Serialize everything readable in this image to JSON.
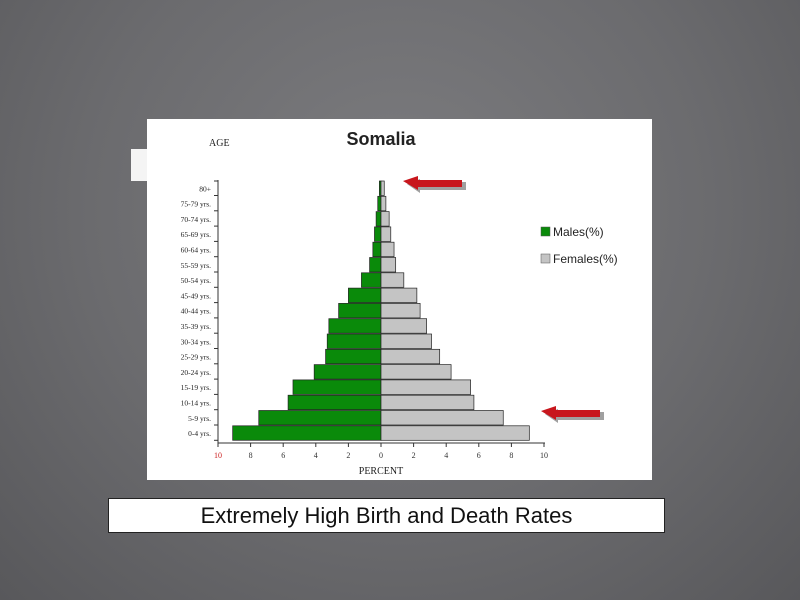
{
  "caption": "Extremely High Birth and Death Rates",
  "colors": {
    "male": "#0a8a0a",
    "female": "#c4c4c4",
    "arrow": "#c8161d",
    "axis_tick_label": "#cc2222",
    "text": "#222222"
  },
  "chart_data": {
    "type": "bar",
    "orientation": "horizontal",
    "subtype": "population-pyramid",
    "title": "Somalia",
    "ylabel": "AGE",
    "xlabel": "PERCENT",
    "xlim": [
      -10,
      10
    ],
    "x_ticks": [
      "10",
      "8",
      "6",
      "4",
      "2",
      "0",
      "2",
      "4",
      "6",
      "8",
      "10"
    ],
    "legend_position": "right",
    "categories": [
      "80+",
      "75-79 yrs.",
      "70-74 yrs.",
      "65-69 yrs.",
      "60-64 yrs.",
      "55-59 yrs.",
      "50-54 yrs.",
      "45-49 yrs.",
      "40-44 yrs.",
      "35-39 yrs.",
      "30-34 yrs.",
      "25-29 yrs.",
      "20-24 yrs.",
      "15-19 yrs.",
      "10-14 yrs.",
      "5-9 yrs.",
      "0-4 yrs."
    ],
    "series": [
      {
        "name": "Males(%)",
        "values": [
          0.1,
          0.2,
          0.3,
          0.4,
          0.5,
          0.7,
          1.2,
          2.0,
          2.6,
          3.2,
          3.3,
          3.4,
          4.1,
          5.4,
          5.7,
          7.5,
          9.1
        ]
      },
      {
        "name": "Females(%)",
        "values": [
          0.2,
          0.3,
          0.5,
          0.6,
          0.8,
          0.9,
          1.4,
          2.2,
          2.4,
          2.8,
          3.1,
          3.6,
          4.3,
          5.5,
          5.7,
          7.5,
          9.1
        ]
      }
    ],
    "annotations": [
      {
        "type": "arrow",
        "direction": "left",
        "points_to": "80+"
      },
      {
        "type": "arrow",
        "direction": "left",
        "points_to": "5-9 yrs."
      }
    ]
  }
}
